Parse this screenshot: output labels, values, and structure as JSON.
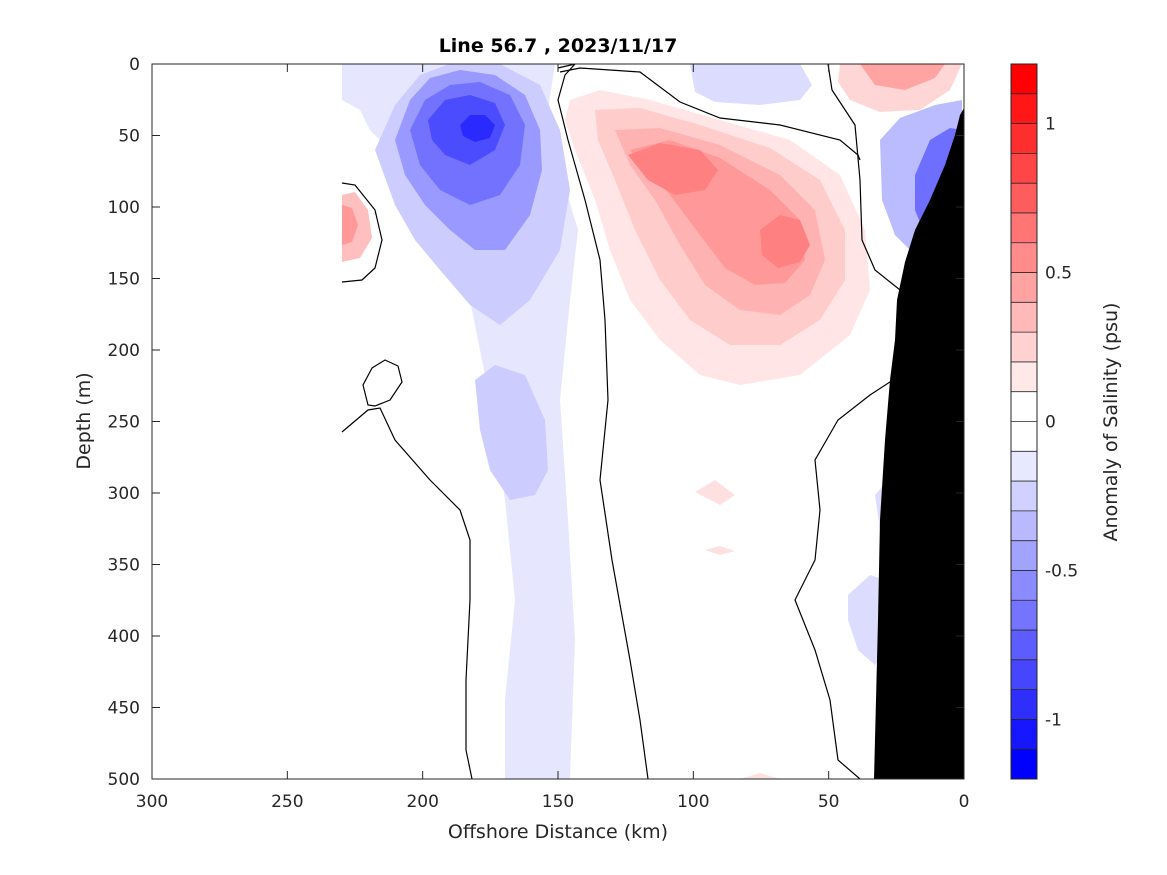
{
  "chart_data": {
    "type": "heatmap",
    "title": "Line 56.7 , 2023/11/17",
    "xlabel": "Offshore Distance (km)",
    "ylabel": "Depth (m)",
    "xlim": [
      300,
      0
    ],
    "ylim": [
      0,
      500
    ],
    "x_reversed": true,
    "y_reversed": true,
    "x_ticks": [
      300,
      250,
      200,
      150,
      100,
      50,
      0
    ],
    "y_ticks": [
      0,
      50,
      100,
      150,
      200,
      250,
      300,
      350,
      400,
      450,
      500
    ],
    "grid": false,
    "colorbar": {
      "label": "Anomaly of Salinity (psu)",
      "range": [
        -1.2,
        1.2
      ],
      "step": 0.1,
      "ticks": [
        1,
        0.5,
        0,
        -0.5,
        -1
      ],
      "tick_labels": [
        "1",
        "0.5",
        "0",
        "-0.5",
        "-1"
      ],
      "negative_color": "#0000ff",
      "positive_color": "#ff0000",
      "zero_color": "#ffffff"
    },
    "features": [
      {
        "kind": "fresh-core",
        "x": 175,
        "depth": 68,
        "value": -1.0
      },
      {
        "kind": "fresh-tongue",
        "x": 170,
        "depth": 270,
        "value": -0.2
      },
      {
        "kind": "fresh-tongue",
        "x": 160,
        "depth": 450,
        "value": -0.1
      },
      {
        "kind": "salty-core",
        "x": 105,
        "depth": 72,
        "value": 0.5
      },
      {
        "kind": "salty-core",
        "x": 65,
        "depth": 120,
        "value": 0.5
      },
      {
        "kind": "salty-patch",
        "x": 222,
        "depth": 105,
        "value": 0.4
      },
      {
        "kind": "salty-patch",
        "x": 22,
        "depth": 5,
        "value": 0.4
      },
      {
        "kind": "fresh-patch",
        "x": 68,
        "depth": 15,
        "value": -0.1
      },
      {
        "kind": "fresh-core",
        "x": 7,
        "depth": 80,
        "value": -0.6
      }
    ],
    "data_start_x": 230,
    "bathymetry_color": "#000000",
    "contour_levels": [
      0
    ]
  }
}
